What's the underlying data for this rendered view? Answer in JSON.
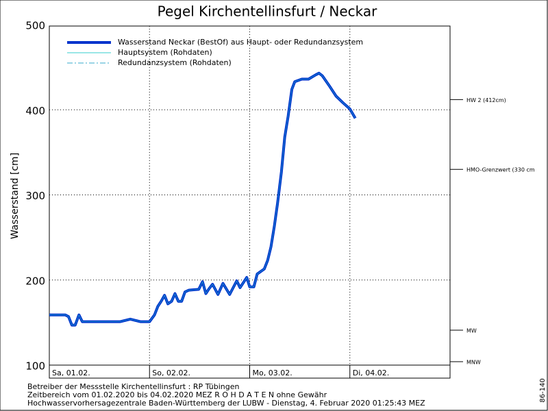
{
  "chart_data": {
    "type": "line",
    "title": "Pegel Kirchentellinsfurt / Neckar",
    "y_label": "Wasserstand [cm]",
    "xlim": [
      0,
      96
    ],
    "xticks": [
      {
        "value": 0,
        "label": "Sa, 01.02."
      },
      {
        "value": 24,
        "label": "So, 02.02."
      },
      {
        "value": 48,
        "label": "Mo, 03.02."
      },
      {
        "value": 72,
        "label": "Di, 04.02."
      }
    ],
    "ylim": [
      100,
      500
    ],
    "yticks": [
      100,
      200,
      300,
      400,
      500
    ],
    "grid": true,
    "series": [
      {
        "name": "Wasserstand Neckar  (BestOf)  aus Haupt- oder Redundanzsystem",
        "color": "#0033cc",
        "x": [
          0,
          3.8,
          4.6,
          5.4,
          6.2,
          7.1,
          7.9,
          11.2,
          16.9,
          19.4,
          21.9,
          24,
          25.2,
          26,
          26.8,
          27.6,
          28.4,
          29.3,
          30.1,
          30.9,
          31.7,
          32.5,
          33.4,
          35.8,
          36.7,
          37.5,
          38.3,
          39.1,
          40.4,
          41.6,
          43.2,
          44.9,
          45.7,
          47.3,
          48,
          49,
          49.8,
          51.5,
          52.3,
          53.1,
          53.9,
          54.7,
          55.6,
          56.4,
          57.2,
          58.1,
          58.8,
          60.5,
          62.1,
          63.8,
          64.6,
          65.4,
          67.1,
          68.7,
          70.4,
          72,
          73.3
        ],
        "values": [
          159,
          159,
          157,
          147,
          147,
          159,
          151,
          151,
          151,
          154,
          151,
          151,
          159,
          169,
          175,
          182,
          172,
          175,
          184,
          175,
          175,
          186,
          188,
          189,
          198,
          184,
          190,
          195,
          183,
          196,
          183,
          199,
          191,
          203,
          192,
          192,
          207,
          213,
          223,
          239,
          263,
          291,
          327,
          368,
          392,
          424,
          433,
          436,
          436,
          441,
          443,
          440,
          428,
          416,
          408,
          401,
          390
        ]
      }
    ],
    "legend": [
      {
        "name": "Hauptsystem (Rohdaten)",
        "color": "#33cccc",
        "dash": "none"
      },
      {
        "name": "Redundanzsystem (Rohdaten)",
        "color": "#33aacc",
        "dash": "8 3 2 3"
      }
    ],
    "reference_lines": [
      {
        "value": 412,
        "label": "HW 2 (412cm)"
      },
      {
        "value": 330,
        "label": "HMO-Grenzwert (330 cm"
      },
      {
        "value": 141,
        "label": "MW"
      },
      {
        "value": 104,
        "label": "MNW"
      }
    ],
    "footer": [
      "Betreiber der Messstelle Kirchentellinsfurt : RP Tübingen",
      "Zeitbereich vom 01.02.2020 bis 04.02.2020    MEZ    R O H D A T E N ohne Gewähr",
      "Hochwasservorhersagezentrale Baden-Württemberg der LUBW - Dienstag, 4. Februar 2020 01:25:43 MEZ"
    ],
    "side_text": "86-140"
  }
}
